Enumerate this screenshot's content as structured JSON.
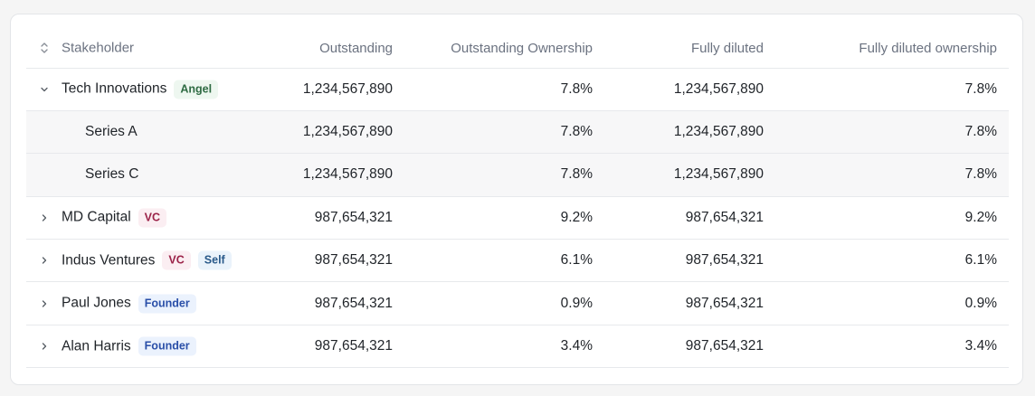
{
  "table": {
    "headers": {
      "stakeholder": "Stakeholder",
      "outstanding": "Outstanding",
      "outstanding_ownership": "Outstanding Ownership",
      "fully_diluted": "Fully diluted",
      "fully_diluted_ownership": "Fully diluted ownership"
    },
    "rows": [
      {
        "name": "Tech Innovations",
        "badges": [
          "Angel"
        ],
        "outstanding": "1,234,567,890",
        "outstanding_ownership": "7.8%",
        "fully_diluted": "1,234,567,890",
        "fully_diluted_ownership": "7.8%",
        "expanded": true
      },
      {
        "name": "Series A",
        "badges": [],
        "outstanding": "1,234,567,890",
        "outstanding_ownership": "7.8%",
        "fully_diluted": "1,234,567,890",
        "fully_diluted_ownership": "7.8%",
        "sub": true
      },
      {
        "name": "Series C",
        "badges": [],
        "outstanding": "1,234,567,890",
        "outstanding_ownership": "7.8%",
        "fully_diluted": "1,234,567,890",
        "fully_diluted_ownership": "7.8%",
        "sub": true
      },
      {
        "name": "MD Capital",
        "badges": [
          "VC"
        ],
        "outstanding": "987,654,321",
        "outstanding_ownership": "9.2%",
        "fully_diluted": "987,654,321",
        "fully_diluted_ownership": "9.2%"
      },
      {
        "name": "Indus Ventures",
        "badges": [
          "VC",
          "Self"
        ],
        "outstanding": "987,654,321",
        "outstanding_ownership": "6.1%",
        "fully_diluted": "987,654,321",
        "fully_diluted_ownership": "6.1%"
      },
      {
        "name": "Paul Jones",
        "badges": [
          "Founder"
        ],
        "outstanding": "987,654,321",
        "outstanding_ownership": "0.9%",
        "fully_diluted": "987,654,321",
        "fully_diluted_ownership": "0.9%"
      },
      {
        "name": "Alan Harris",
        "badges": [
          "Founder"
        ],
        "outstanding": "987,654,321",
        "outstanding_ownership": "3.4%",
        "fully_diluted": "987,654,321",
        "fully_diluted_ownership": "3.4%"
      }
    ]
  },
  "icons": {
    "sort": "sort-icon",
    "expand": "chevron-right-icon",
    "collapse": "chevron-down-icon"
  },
  "colors": {
    "angel_text": "#2f6b43",
    "vc_text": "#9b2248",
    "self_text": "#2a5a8a",
    "founder_text": "#2a4fa8",
    "subrow_bg": "#f7f7f8"
  }
}
